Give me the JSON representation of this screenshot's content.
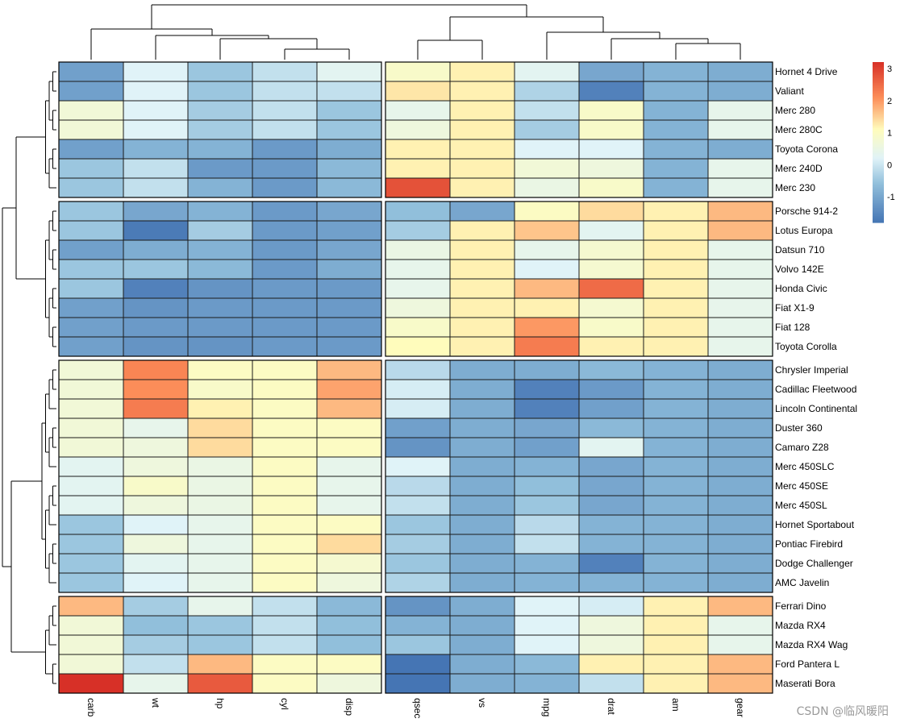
{
  "chart_data": {
    "type": "heatmap",
    "title": "",
    "column_groups": [
      [
        "carb",
        "wt",
        "hp",
        "cyl",
        "disp"
      ],
      [
        "qsec",
        "vs",
        "mpg",
        "drat",
        "am",
        "gear"
      ]
    ],
    "row_groups": [
      [
        "Hornet 4 Drive",
        "Valiant",
        "Merc 280",
        "Merc 280C",
        "Toyota Corona",
        "Merc 240D",
        "Merc 230"
      ],
      [
        "Porsche 914-2",
        "Lotus Europa",
        "Datsun 710",
        "Volvo 142E",
        "Honda Civic",
        "Fiat X1-9",
        "Fiat 128",
        "Toyota Corolla"
      ],
      [
        "Chrysler Imperial",
        "Cadillac Fleetwood",
        "Lincoln Continental",
        "Duster 360",
        "Camaro Z28",
        "Merc 450SLC",
        "Merc 450SE",
        "Merc 450SL",
        "Hornet Sportabout",
        "Pontiac Firebird",
        "Dodge Challenger",
        "AMC Javelin"
      ],
      [
        "Ferrari Dino",
        "Mazda RX4",
        "Mazda RX4 Wag",
        "Ford Pantera L",
        "Maserati Bora"
      ]
    ],
    "values": [
      [
        -1.1,
        0.2,
        -0.5,
        -0.1,
        0.3,
        0.9,
        1.2,
        0.3,
        -1.0,
        -0.8,
        -0.9
      ],
      [
        -1.1,
        0.2,
        -0.5,
        -0.1,
        -0.1,
        1.3,
        1.2,
        -0.3,
        -1.6,
        -0.8,
        -0.9
      ],
      [
        0.7,
        0.2,
        -0.4,
        -0.1,
        -0.5,
        0.4,
        1.2,
        -0.1,
        0.9,
        -0.8,
        0.4
      ],
      [
        0.7,
        0.2,
        -0.4,
        -0.1,
        -0.5,
        0.6,
        1.2,
        -0.4,
        0.9,
        -0.8,
        0.4
      ],
      [
        -1.1,
        -0.8,
        -0.8,
        -1.2,
        -0.9,
        1.2,
        1.2,
        0.2,
        0.2,
        -0.8,
        -0.9
      ],
      [
        -0.5,
        -0.1,
        -1.2,
        -1.2,
        -0.7,
        1.2,
        1.2,
        0.7,
        0.6,
        -0.8,
        0.4
      ],
      [
        -0.5,
        -0.1,
        -0.8,
        -1.2,
        -0.7,
        2.8,
        1.2,
        0.5,
        0.9,
        -0.8,
        0.4
      ],
      [
        -0.5,
        -1.0,
        -0.8,
        -1.2,
        -1.0,
        -0.6,
        -1.0,
        1.0,
        1.4,
        1.2,
        1.7
      ],
      [
        -0.5,
        -1.7,
        -0.4,
        -1.2,
        -1.1,
        -0.4,
        1.2,
        1.6,
        0.3,
        1.2,
        1.7
      ],
      [
        -1.1,
        -0.9,
        -0.8,
        -1.2,
        -1.0,
        0.5,
        1.2,
        0.4,
        0.8,
        1.2,
        0.4
      ],
      [
        -0.5,
        -0.5,
        -0.7,
        -1.2,
        -0.9,
        0.4,
        1.2,
        0.2,
        0.8,
        1.2,
        0.4
      ],
      [
        -0.5,
        -1.6,
        -1.3,
        -1.2,
        -1.2,
        0.4,
        1.2,
        1.7,
        2.5,
        1.2,
        0.4
      ],
      [
        -1.1,
        -1.3,
        -1.2,
        -1.2,
        -1.2,
        0.6,
        1.2,
        1.2,
        0.8,
        1.2,
        0.4
      ],
      [
        -1.1,
        -1.2,
        -1.2,
        -1.2,
        -1.2,
        0.9,
        1.2,
        2.0,
        0.9,
        1.2,
        0.4
      ],
      [
        -1.1,
        -1.3,
        -1.3,
        -1.2,
        -1.2,
        1.1,
        1.2,
        2.3,
        1.2,
        1.2,
        0.4
      ],
      [
        0.7,
        2.2,
        1.0,
        1.0,
        1.7,
        -0.2,
        -0.9,
        -0.9,
        -0.7,
        -0.8,
        -0.9
      ],
      [
        0.7,
        2.1,
        0.9,
        1.0,
        1.9,
        0.1,
        -0.9,
        -1.6,
        -1.2,
        -0.8,
        -0.9
      ],
      [
        0.7,
        2.3,
        1.2,
        1.0,
        1.7,
        0.1,
        -0.9,
        -1.6,
        -1.1,
        -0.8,
        -0.9
      ],
      [
        0.7,
        0.4,
        1.4,
        1.0,
        1.0,
        -1.1,
        -0.9,
        -1.0,
        -0.7,
        -0.8,
        -0.9
      ],
      [
        0.7,
        0.6,
        1.4,
        1.0,
        1.0,
        -1.3,
        -0.9,
        -1.1,
        0.3,
        -0.8,
        -0.9
      ],
      [
        0.3,
        0.6,
        0.5,
        1.0,
        0.4,
        0.2,
        -0.9,
        -0.8,
        -1.0,
        -0.8,
        -0.9
      ],
      [
        0.3,
        0.9,
        0.5,
        1.0,
        0.4,
        -0.2,
        -0.9,
        -0.6,
        -1.0,
        -0.8,
        -0.9
      ],
      [
        0.3,
        0.6,
        0.5,
        1.0,
        0.4,
        -0.1,
        -0.9,
        -0.5,
        -1.0,
        -0.8,
        -0.9
      ],
      [
        -0.5,
        0.2,
        0.4,
        1.0,
        1.0,
        -0.5,
        -0.9,
        -0.2,
        -0.8,
        -0.8,
        -0.9
      ],
      [
        -0.5,
        0.6,
        0.4,
        1.0,
        1.4,
        -0.4,
        -0.9,
        -0.1,
        -0.8,
        -0.8,
        -0.9
      ],
      [
        -0.5,
        0.3,
        0.4,
        1.0,
        0.8,
        -0.5,
        -0.9,
        -0.8,
        -1.6,
        -0.8,
        -0.9
      ],
      [
        -0.5,
        0.2,
        0.4,
        1.0,
        0.6,
        -0.3,
        -0.9,
        -0.8,
        -0.8,
        -0.8,
        -0.9
      ],
      [
        1.7,
        -0.4,
        0.4,
        -0.1,
        -0.7,
        -1.3,
        -0.9,
        0.2,
        0.1,
        1.2,
        1.7
      ],
      [
        0.7,
        -0.6,
        -0.5,
        -0.1,
        -0.6,
        -0.8,
        -0.9,
        0.2,
        0.6,
        1.2,
        0.4
      ],
      [
        0.7,
        -0.4,
        -0.5,
        -0.1,
        -0.6,
        -0.5,
        -0.9,
        0.2,
        0.6,
        1.2,
        0.4
      ],
      [
        0.7,
        -0.1,
        1.7,
        1.0,
        1.0,
        -1.9,
        -0.9,
        -0.7,
        1.2,
        1.2,
        1.7
      ],
      [
        3.2,
        0.4,
        2.7,
        1.0,
        0.6,
        -1.8,
        -0.9,
        -0.8,
        -0.1,
        1.2,
        1.7
      ]
    ],
    "color_scale": {
      "stops": [
        -1.8,
        -0.6,
        0.2,
        1.1,
        2.1,
        3.2
      ],
      "colors": [
        "#4575b4",
        "#91bfdb",
        "#e0f3f8",
        "#fffcbc",
        "#fc8d59",
        "#d73027"
      ]
    },
    "legend": {
      "position": "top-right",
      "range": [
        -1.8,
        3.2
      ],
      "ticks": [
        -1,
        0,
        1,
        2,
        3
      ]
    },
    "column_dendrogram": "top",
    "row_dendrogram": "left"
  },
  "watermark": "CSDN @临风暖阳"
}
